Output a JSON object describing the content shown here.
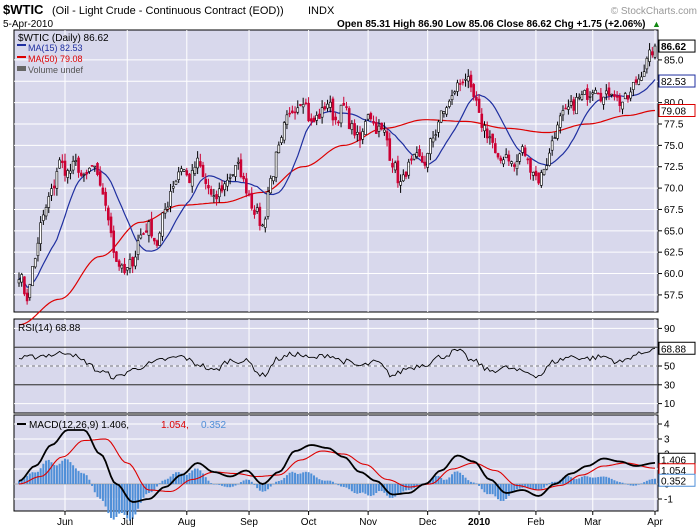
{
  "header": {
    "symbol": "$WTIC",
    "name": "(Oil - Light Crude - Continuous Contract (EOD))",
    "exchange": "INDX",
    "date": "5-Apr-2010",
    "quote": "Open 85.31   High 86.90   Low 85.06   Close 86.62   Chg +1.75 (+2.06%)",
    "watermark": "© StockCharts.com",
    "up_arrow": "▲"
  },
  "colors": {
    "panel_bg": "#d8d8ec",
    "up": "#000000",
    "down": "#cc0033",
    "ma15": "#1f2fa0",
    "ma50": "#dd0000",
    "rsi": "#000000",
    "macd": "#000000",
    "signal": "#dd0000",
    "hist": "#4f8fd8",
    "label_fill": "#ffffff"
  },
  "chart_data": [
    {
      "type": "candlestick",
      "legend": {
        "price": "$WTIC (Daily) 86.62",
        "ma15": "MA(15) 82.53",
        "ma50": "MA(50) 79.08",
        "volume": "Volume undef"
      },
      "ylim": [
        55.5,
        88.5
      ],
      "yticks": [
        57.5,
        60.0,
        62.5,
        65.0,
        67.5,
        70.0,
        72.5,
        75.0,
        77.5,
        80.0,
        82.5,
        85.0
      ],
      "ytick_labels": [
        "57.5",
        "60.0",
        "62.5",
        "65.0",
        "67.5",
        "70.0",
        "72.5",
        "75.0",
        "77.5",
        "80.0",
        "82.5",
        "85.0"
      ],
      "value_labels": {
        "last": "86.62",
        "ma15": "82.53",
        "ma50": "79.08"
      },
      "close_anchors": [
        [
          0,
          60.0
        ],
        [
          3,
          57.2
        ],
        [
          6,
          62.0
        ],
        [
          9,
          66.8
        ],
        [
          12,
          69.5
        ],
        [
          15,
          73.0
        ],
        [
          18,
          71.8
        ],
        [
          21,
          72.8
        ],
        [
          24,
          71.0
        ],
        [
          27,
          72.5
        ],
        [
          30,
          70.5
        ],
        [
          33,
          66.5
        ],
        [
          36,
          61.5
        ],
        [
          39,
          60.0
        ],
        [
          42,
          61.5
        ],
        [
          45,
          64.5
        ],
        [
          48,
          65.5
        ],
        [
          51,
          63.5
        ],
        [
          54,
          67.5
        ],
        [
          57,
          70.5
        ],
        [
          60,
          72.5
        ],
        [
          63,
          71.0
        ],
        [
          66,
          73.0
        ],
        [
          69,
          70.5
        ],
        [
          72,
          68.5
        ],
        [
          75,
          70.0
        ],
        [
          78,
          71.5
        ],
        [
          81,
          72.5
        ],
        [
          84,
          70.0
        ],
        [
          87,
          67.5
        ],
        [
          90,
          65.5
        ],
        [
          93,
          71.0
        ],
        [
          96,
          74.5
        ],
        [
          99,
          78.0
        ],
        [
          102,
          79.5
        ],
        [
          105,
          80.5
        ],
        [
          108,
          77.5
        ],
        [
          111,
          78.5
        ],
        [
          114,
          80.0
        ],
        [
          117,
          78.0
        ],
        [
          120,
          79.5
        ],
        [
          123,
          77.0
        ],
        [
          126,
          75.5
        ],
        [
          129,
          79.0
        ],
        [
          132,
          77.0
        ],
        [
          135,
          76.5
        ],
        [
          138,
          73.0
        ],
        [
          141,
          70.5
        ],
        [
          144,
          72.5
        ],
        [
          147,
          73.5
        ],
        [
          150,
          73.0
        ],
        [
          153,
          76.0
        ],
        [
          156,
          78.5
        ],
        [
          159,
          80.0
        ],
        [
          162,
          82.0
        ],
        [
          165,
          83.0
        ],
        [
          168,
          80.5
        ],
        [
          171,
          77.5
        ],
        [
          174,
          76.0
        ],
        [
          177,
          73.0
        ],
        [
          180,
          74.0
        ],
        [
          183,
          72.5
        ],
        [
          186,
          74.5
        ],
        [
          189,
          72.5
        ],
        [
          192,
          71.0
        ],
        [
          195,
          73.0
        ],
        [
          198,
          76.5
        ],
        [
          201,
          78.5
        ],
        [
          204,
          79.5
        ],
        [
          207,
          80.5
        ],
        [
          210,
          81.0
        ],
        [
          213,
          82.0
        ],
        [
          216,
          80.5
        ],
        [
          219,
          81.5
        ],
        [
          222,
          80.0
        ],
        [
          225,
          80.5
        ],
        [
          228,
          82.5
        ],
        [
          231,
          84.0
        ],
        [
          233,
          85.5
        ],
        [
          235,
          86.62
        ]
      ],
      "ma50_anchors": [
        [
          0,
          54.0
        ],
        [
          15,
          57.0
        ],
        [
          30,
          62.0
        ],
        [
          45,
          66.0
        ],
        [
          60,
          68.0
        ],
        [
          75,
          68.3
        ],
        [
          90,
          69.5
        ],
        [
          105,
          72.5
        ],
        [
          120,
          75.0
        ],
        [
          135,
          77.0
        ],
        [
          150,
          78.0
        ],
        [
          165,
          77.8
        ],
        [
          180,
          77.0
        ],
        [
          195,
          76.5
        ],
        [
          210,
          77.5
        ],
        [
          225,
          78.5
        ],
        [
          235,
          79.08
        ]
      ]
    },
    {
      "type": "line",
      "legend": "RSI(14) 68.88",
      "ylim": [
        0,
        100
      ],
      "yticks": [
        10,
        30,
        50,
        70,
        90
      ],
      "ytick_labels": [
        "10",
        "30",
        "50",
        "70",
        "90"
      ],
      "value_label": "68.88",
      "anchors": [
        [
          0,
          58
        ],
        [
          12,
          62
        ],
        [
          18,
          65
        ],
        [
          24,
          55
        ],
        [
          30,
          44
        ],
        [
          36,
          38
        ],
        [
          42,
          46
        ],
        [
          48,
          52
        ],
        [
          54,
          57
        ],
        [
          60,
          60
        ],
        [
          66,
          52
        ],
        [
          72,
          45
        ],
        [
          78,
          56
        ],
        [
          84,
          55
        ],
        [
          90,
          40
        ],
        [
          96,
          58
        ],
        [
          102,
          63
        ],
        [
          108,
          58
        ],
        [
          114,
          62
        ],
        [
          120,
          55
        ],
        [
          126,
          50
        ],
        [
          132,
          54
        ],
        [
          138,
          40
        ],
        [
          144,
          48
        ],
        [
          150,
          52
        ],
        [
          156,
          60
        ],
        [
          162,
          66
        ],
        [
          168,
          55
        ],
        [
          174,
          45
        ],
        [
          180,
          48
        ],
        [
          186,
          44
        ],
        [
          192,
          40
        ],
        [
          198,
          55
        ],
        [
          204,
          60
        ],
        [
          210,
          58
        ],
        [
          216,
          60
        ],
        [
          222,
          54
        ],
        [
          228,
          62
        ],
        [
          235,
          68.88
        ]
      ]
    },
    {
      "type": "line",
      "legend": {
        "macd": "MACD(12,26,9) 1.406,",
        "signal": "1.054,",
        "hist": "0.352"
      },
      "ylim": [
        -1.8,
        4.6
      ],
      "yticks": [
        -1,
        0,
        1,
        2,
        3,
        4
      ],
      "ytick_labels": [
        "-1",
        "0",
        "1",
        "2",
        "3",
        "4"
      ],
      "value_labels": {
        "macd": "1.406",
        "signal": "1.054",
        "hist": "0.352"
      },
      "macd_anchors": [
        [
          0,
          0.2
        ],
        [
          6,
          1.2
        ],
        [
          12,
          2.6
        ],
        [
          18,
          3.6
        ],
        [
          24,
          3.6
        ],
        [
          30,
          2.0
        ],
        [
          36,
          0.0
        ],
        [
          42,
          -1.2
        ],
        [
          48,
          -1.0
        ],
        [
          54,
          -0.2
        ],
        [
          60,
          0.6
        ],
        [
          66,
          1.4
        ],
        [
          72,
          0.8
        ],
        [
          78,
          0.5
        ],
        [
          84,
          0.9
        ],
        [
          90,
          0.0
        ],
        [
          96,
          0.8
        ],
        [
          102,
          2.2
        ],
        [
          108,
          2.6
        ],
        [
          114,
          2.4
        ],
        [
          120,
          1.8
        ],
        [
          126,
          0.8
        ],
        [
          132,
          0.2
        ],
        [
          138,
          -0.7
        ],
        [
          144,
          -0.6
        ],
        [
          150,
          0.0
        ],
        [
          156,
          0.9
        ],
        [
          162,
          1.9
        ],
        [
          168,
          1.5
        ],
        [
          174,
          0.3
        ],
        [
          180,
          -0.6
        ],
        [
          186,
          -0.4
        ],
        [
          192,
          -0.8
        ],
        [
          198,
          0.0
        ],
        [
          204,
          0.7
        ],
        [
          210,
          1.2
        ],
        [
          216,
          1.7
        ],
        [
          222,
          1.5
        ],
        [
          228,
          1.2
        ],
        [
          235,
          1.406
        ]
      ],
      "signal_anchors": [
        [
          0,
          0.0
        ],
        [
          8,
          0.5
        ],
        [
          16,
          1.8
        ],
        [
          24,
          2.9
        ],
        [
          32,
          3.0
        ],
        [
          40,
          1.4
        ],
        [
          48,
          -0.4
        ],
        [
          56,
          -0.5
        ],
        [
          64,
          0.3
        ],
        [
          72,
          0.8
        ],
        [
          80,
          0.7
        ],
        [
          88,
          0.5
        ],
        [
          96,
          0.6
        ],
        [
          104,
          1.6
        ],
        [
          112,
          2.2
        ],
        [
          120,
          2.0
        ],
        [
          128,
          1.3
        ],
        [
          136,
          0.3
        ],
        [
          144,
          -0.2
        ],
        [
          152,
          0.0
        ],
        [
          160,
          1.0
        ],
        [
          168,
          1.4
        ],
        [
          176,
          0.9
        ],
        [
          184,
          -0.1
        ],
        [
          192,
          -0.4
        ],
        [
          200,
          -0.1
        ],
        [
          208,
          0.6
        ],
        [
          216,
          1.2
        ],
        [
          224,
          1.4
        ],
        [
          235,
          1.054
        ]
      ]
    }
  ],
  "x_axis": {
    "labels": [
      {
        "text": "Jun",
        "i": 17
      },
      {
        "text": "Jul",
        "i": 40
      },
      {
        "text": "Aug",
        "i": 62
      },
      {
        "text": "Sep",
        "i": 85
      },
      {
        "text": "Oct",
        "i": 107
      },
      {
        "text": "Nov",
        "i": 129
      },
      {
        "text": "Dec",
        "i": 151
      },
      {
        "text": "2010",
        "i": 170
      },
      {
        "text": "Feb",
        "i": 191
      },
      {
        "text": "Mar",
        "i": 212
      },
      {
        "text": "Apr",
        "i": 235
      }
    ],
    "bold_label": "2010",
    "n": 236
  }
}
